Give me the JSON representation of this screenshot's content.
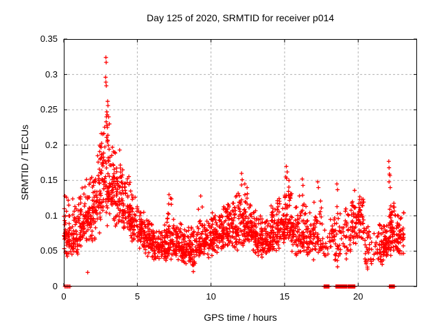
{
  "colors": {
    "marker": "#ff0000",
    "grid": "#b0b0b0",
    "axis": "#000000",
    "text": "#000000",
    "background": "#ffffff"
  },
  "chart_data": {
    "type": "scatter",
    "title": "Day 125 of 2020, SRMTID for receiver p014",
    "xlabel": "GPS time / hours",
    "ylabel": "SRMTID / TECUs",
    "xlim": [
      0,
      24
    ],
    "ylim": [
      0,
      0.35
    ],
    "xticks": [
      0,
      5,
      10,
      15,
      20
    ],
    "xtick_labels": [
      "0",
      "5",
      "10",
      "15",
      "20"
    ],
    "yticks": [
      0,
      0.05,
      0.1,
      0.15,
      0.2,
      0.25,
      0.3,
      0.35
    ],
    "ytick_labels": [
      "0",
      "0.05",
      "0.1",
      "0.15",
      "0.2",
      "0.25",
      "0.3",
      "0.35"
    ],
    "grid": "dashed",
    "legend": "none",
    "marker": "plus",
    "series_name": "SRMTID",
    "density_profile_comment": "bins of [x_start,x_end,y_min,y_max,y_mode,count] read from the point cloud",
    "density_profile": [
      [
        0.0,
        0.5,
        0.035,
        0.13,
        0.072,
        52
      ],
      [
        0.5,
        1.0,
        0.04,
        0.125,
        0.075,
        54
      ],
      [
        1.0,
        1.5,
        0.048,
        0.15,
        0.09,
        54
      ],
      [
        1.5,
        2.0,
        0.055,
        0.16,
        0.1,
        56
      ],
      [
        2.0,
        2.5,
        0.065,
        0.205,
        0.12,
        58
      ],
      [
        2.5,
        3.0,
        0.08,
        0.235,
        0.148,
        60
      ],
      [
        3.0,
        3.5,
        0.08,
        0.22,
        0.14,
        60
      ],
      [
        3.5,
        4.0,
        0.075,
        0.195,
        0.125,
        58
      ],
      [
        4.0,
        4.5,
        0.068,
        0.17,
        0.108,
        56
      ],
      [
        4.5,
        5.0,
        0.058,
        0.14,
        0.092,
        54
      ],
      [
        5.0,
        5.5,
        0.048,
        0.11,
        0.078,
        54
      ],
      [
        5.5,
        6.0,
        0.04,
        0.095,
        0.065,
        54
      ],
      [
        6.0,
        6.5,
        0.034,
        0.085,
        0.058,
        54
      ],
      [
        6.5,
        7.0,
        0.034,
        0.092,
        0.058,
        54
      ],
      [
        7.0,
        7.5,
        0.038,
        0.128,
        0.064,
        54
      ],
      [
        7.5,
        8.0,
        0.034,
        0.1,
        0.06,
        54
      ],
      [
        8.0,
        8.5,
        0.03,
        0.09,
        0.055,
        54
      ],
      [
        8.5,
        9.0,
        0.022,
        0.09,
        0.052,
        54
      ],
      [
        9.0,
        9.5,
        0.034,
        0.115,
        0.06,
        54
      ],
      [
        9.5,
        10.0,
        0.04,
        0.105,
        0.065,
        54
      ],
      [
        10.0,
        10.5,
        0.04,
        0.112,
        0.068,
        54
      ],
      [
        10.5,
        11.0,
        0.045,
        0.12,
        0.072,
        54
      ],
      [
        11.0,
        11.5,
        0.048,
        0.125,
        0.08,
        54
      ],
      [
        11.5,
        12.0,
        0.05,
        0.14,
        0.085,
        56
      ],
      [
        12.0,
        12.5,
        0.05,
        0.15,
        0.088,
        58
      ],
      [
        12.5,
        13.0,
        0.045,
        0.122,
        0.08,
        56
      ],
      [
        13.0,
        13.5,
        0.04,
        0.108,
        0.068,
        56
      ],
      [
        13.5,
        14.0,
        0.04,
        0.102,
        0.065,
        56
      ],
      [
        14.0,
        14.5,
        0.044,
        0.12,
        0.075,
        56
      ],
      [
        14.5,
        15.0,
        0.05,
        0.132,
        0.082,
        56
      ],
      [
        15.0,
        15.5,
        0.055,
        0.158,
        0.095,
        58
      ],
      [
        15.5,
        16.0,
        0.04,
        0.12,
        0.075,
        50
      ],
      [
        16.0,
        16.5,
        0.038,
        0.14,
        0.07,
        48
      ],
      [
        16.5,
        17.0,
        0.034,
        0.115,
        0.065,
        44
      ],
      [
        17.0,
        17.5,
        0.038,
        0.132,
        0.07,
        36
      ],
      [
        17.5,
        18.0,
        0.03,
        0.095,
        0.06,
        18
      ],
      [
        18.0,
        18.5,
        0.03,
        0.112,
        0.07,
        32
      ],
      [
        18.5,
        19.0,
        0.02,
        0.122,
        0.06,
        28
      ],
      [
        19.0,
        19.5,
        0.03,
        0.12,
        0.07,
        30
      ],
      [
        19.5,
        20.0,
        0.05,
        0.148,
        0.095,
        42
      ],
      [
        20.0,
        20.45,
        0.05,
        0.14,
        0.1,
        42
      ],
      [
        20.45,
        20.95,
        0.02,
        0.095,
        0.055,
        32
      ],
      [
        20.95,
        21.3,
        0.03,
        0.082,
        0.05,
        8
      ],
      [
        21.3,
        21.75,
        0.02,
        0.092,
        0.055,
        42
      ],
      [
        21.75,
        22.1,
        0.03,
        0.1,
        0.06,
        42
      ],
      [
        22.1,
        22.55,
        0.04,
        0.132,
        0.08,
        50
      ],
      [
        22.55,
        23.1,
        0.04,
        0.112,
        0.068,
        54
      ]
    ],
    "outlier_points": [
      [
        2.86,
        0.324
      ],
      [
        2.88,
        0.317
      ],
      [
        2.84,
        0.296
      ],
      [
        2.86,
        0.289
      ],
      [
        2.89,
        0.284
      ],
      [
        2.98,
        0.262
      ],
      [
        3.0,
        0.256
      ],
      [
        2.92,
        0.247
      ],
      [
        2.95,
        0.243
      ],
      [
        2.9,
        0.24
      ],
      [
        2.88,
        0.233
      ],
      [
        2.93,
        0.228
      ],
      [
        2.96,
        0.225
      ],
      [
        2.91,
        0.211
      ],
      [
        2.97,
        0.207
      ],
      [
        3.05,
        0.24
      ],
      [
        3.1,
        0.23
      ],
      [
        3.3,
        0.197
      ],
      [
        3.45,
        0.19
      ],
      [
        3.8,
        0.193
      ],
      [
        2.3,
        0.185
      ],
      [
        2.45,
        0.2
      ],
      [
        4.0,
        0.165
      ],
      [
        1.62,
        0.02
      ],
      [
        8.8,
        0.021
      ],
      [
        7.15,
        0.13
      ],
      [
        7.25,
        0.125
      ],
      [
        9.3,
        0.128
      ],
      [
        12.08,
        0.16
      ],
      [
        12.12,
        0.151
      ],
      [
        12.3,
        0.145
      ],
      [
        15.12,
        0.17
      ],
      [
        15.18,
        0.162
      ],
      [
        15.08,
        0.155
      ],
      [
        15.3,
        0.15
      ],
      [
        16.2,
        0.152
      ],
      [
        16.25,
        0.143
      ],
      [
        17.25,
        0.148
      ],
      [
        17.3,
        0.14
      ],
      [
        18.55,
        0.145
      ],
      [
        18.6,
        0.137
      ],
      [
        22.08,
        0.177
      ],
      [
        22.1,
        0.168
      ],
      [
        22.12,
        0.159
      ],
      [
        22.16,
        0.157
      ],
      [
        22.1,
        0.148
      ],
      [
        22.18,
        0.14
      ],
      [
        0.08,
        0.128
      ],
      [
        0.3,
        0.122
      ]
    ],
    "zero_value_runs": [
      {
        "x0": 0.08,
        "x1": 0.42,
        "n": 5
      },
      {
        "x0": 17.68,
        "x1": 18.02,
        "n": 9
      },
      {
        "x0": 18.48,
        "x1": 18.93,
        "n": 12
      },
      {
        "x0": 18.98,
        "x1": 19.22,
        "n": 7
      },
      {
        "x0": 19.3,
        "x1": 19.78,
        "n": 13
      },
      {
        "x0": 22.12,
        "x1": 22.46,
        "n": 10
      }
    ]
  }
}
